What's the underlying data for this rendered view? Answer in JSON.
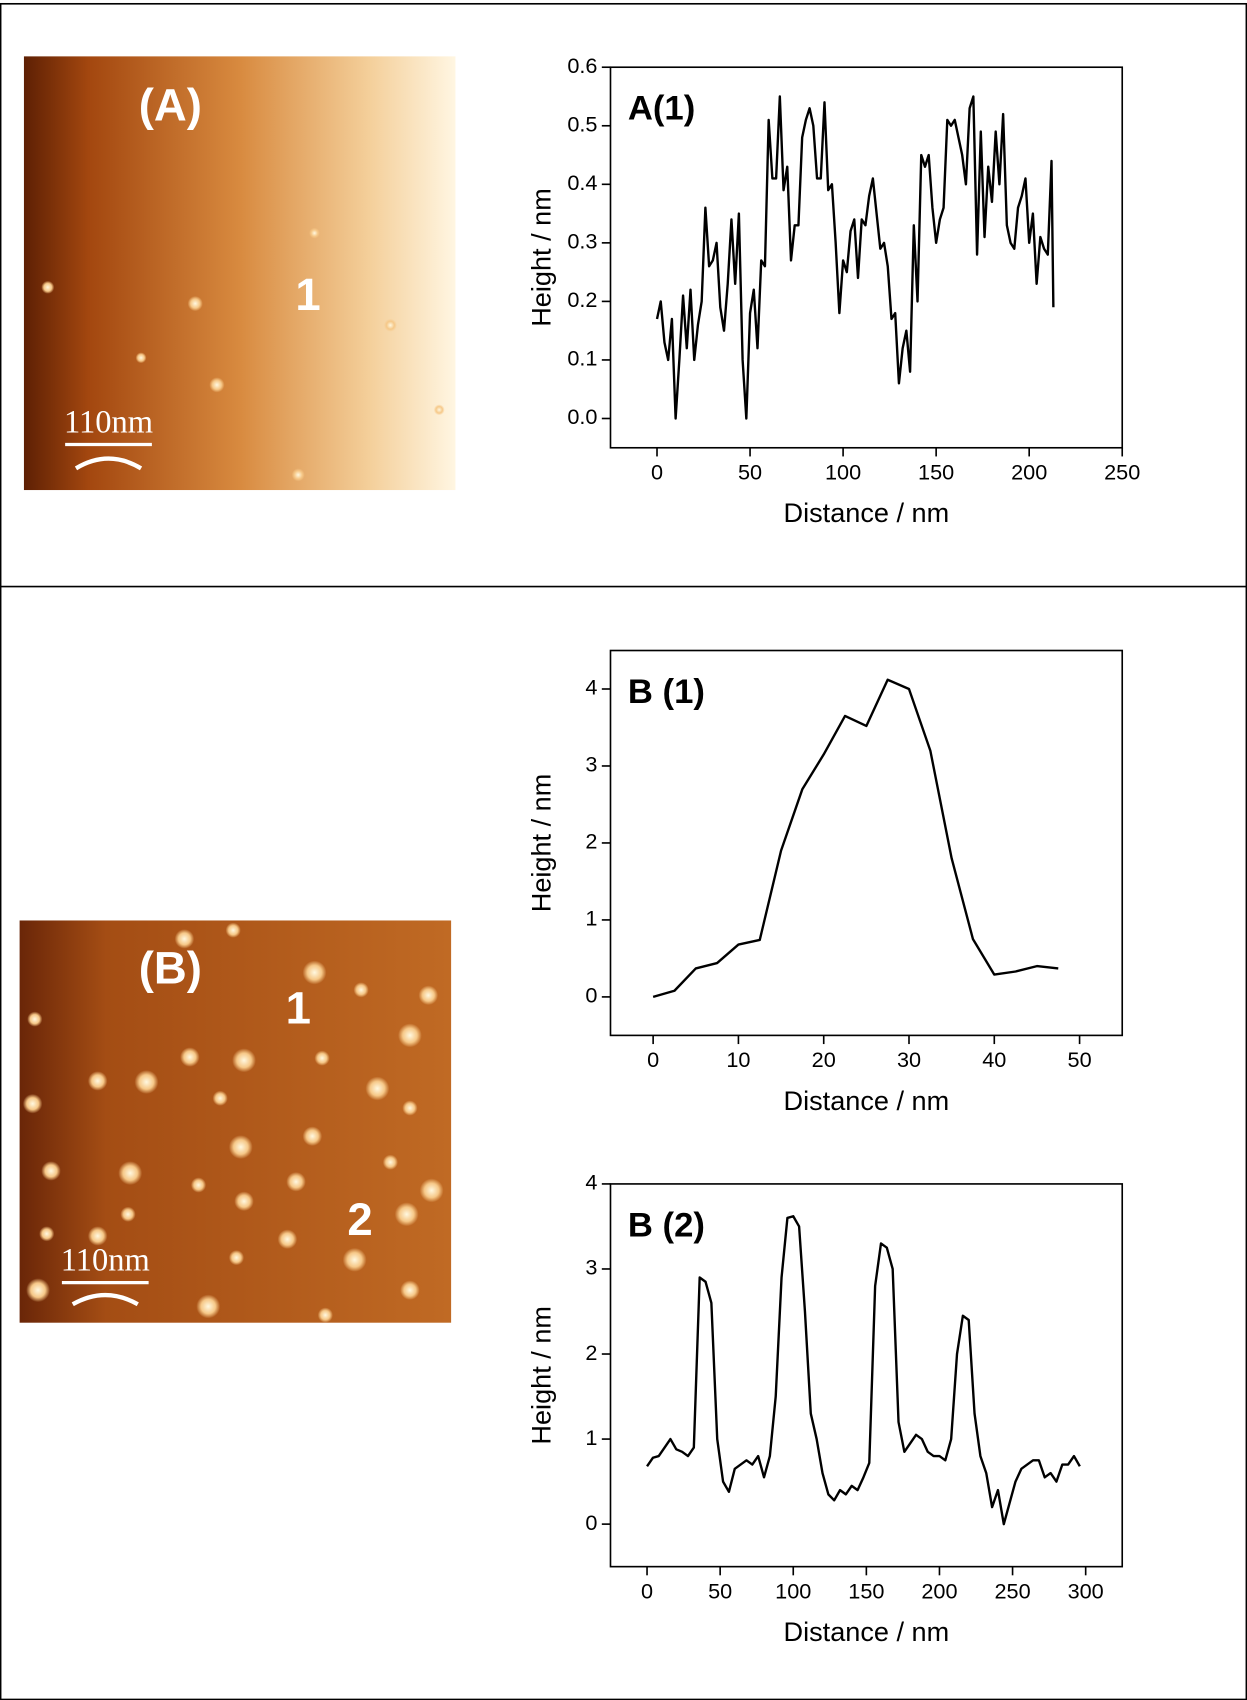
{
  "images": [
    {
      "label": "(A)",
      "markers": [
        "1"
      ],
      "scale_bar": "110nm"
    },
    {
      "label": "(B)",
      "markers": [
        "1",
        "2"
      ],
      "scale_bar": "110nm"
    }
  ],
  "chart_data": [
    {
      "type": "line",
      "title": "A(1)",
      "xlabel": "Distance / nm",
      "ylabel": "Height / nm",
      "color": "#000000",
      "xlim": [
        -25,
        250
      ],
      "xticks": [
        0,
        50,
        100,
        150,
        200,
        250
      ],
      "ylim": [
        -0.05,
        0.6
      ],
      "yticks": [
        {
          "value": 0,
          "label": "0.0"
        },
        0.1,
        0.2,
        0.3,
        0.4,
        0.5,
        0.6
      ],
      "x": [
        0,
        2,
        4,
        6,
        8,
        10,
        12,
        14,
        16,
        18,
        20,
        22,
        24,
        26,
        28,
        30,
        32,
        34,
        36,
        38,
        40,
        42,
        44,
        46,
        48,
        50,
        52,
        54,
        56,
        58,
        60,
        62,
        64,
        66,
        68,
        70,
        72,
        74,
        76,
        78,
        80,
        82,
        84,
        86,
        88,
        90,
        92,
        94,
        96,
        98,
        100,
        102,
        104,
        106,
        108,
        110,
        112,
        114,
        116,
        118,
        120,
        122,
        124,
        126,
        128,
        130,
        132,
        134,
        136,
        138,
        140,
        142,
        144,
        146,
        148,
        150,
        152,
        154,
        156,
        158,
        160,
        162,
        164,
        166,
        168,
        170,
        172,
        174,
        176,
        178,
        180,
        182,
        184,
        186,
        188,
        190,
        192,
        194,
        196,
        198,
        200,
        202,
        204,
        206,
        208,
        210,
        212,
        213
      ],
      "values": [
        0.17,
        0.2,
        0.13,
        0.1,
        0.17,
        0.0,
        0.1,
        0.21,
        0.12,
        0.22,
        0.1,
        0.16,
        0.2,
        0.36,
        0.26,
        0.27,
        0.3,
        0.19,
        0.15,
        0.23,
        0.34,
        0.23,
        0.35,
        0.1,
        0.0,
        0.18,
        0.22,
        0.12,
        0.27,
        0.26,
        0.51,
        0.41,
        0.41,
        0.55,
        0.39,
        0.43,
        0.27,
        0.33,
        0.33,
        0.48,
        0.51,
        0.53,
        0.5,
        0.41,
        0.41,
        0.54,
        0.39,
        0.4,
        0.3,
        0.18,
        0.27,
        0.25,
        0.32,
        0.34,
        0.24,
        0.34,
        0.33,
        0.38,
        0.41,
        0.35,
        0.29,
        0.3,
        0.26,
        0.17,
        0.18,
        0.06,
        0.12,
        0.15,
        0.08,
        0.33,
        0.2,
        0.45,
        0.43,
        0.45,
        0.36,
        0.3,
        0.34,
        0.36,
        0.51,
        0.5,
        0.51,
        0.48,
        0.45,
        0.4,
        0.53,
        0.55,
        0.28,
        0.49,
        0.31,
        0.43,
        0.37,
        0.49,
        0.4,
        0.52,
        0.33,
        0.3,
        0.29,
        0.36,
        0.38,
        0.41,
        0.3,
        0.35,
        0.23,
        0.31,
        0.29,
        0.28,
        0.44,
        0.19
      ]
    },
    {
      "type": "line",
      "title": "B (1)",
      "xlabel": "Distance / nm",
      "ylabel": "Height / nm",
      "color": "#000000",
      "xlim": [
        -5,
        55
      ],
      "xticks": [
        0,
        10,
        20,
        30,
        40,
        50
      ],
      "ylim": [
        -0.5,
        4.5
      ],
      "yticks": [
        0,
        1,
        2,
        3,
        4
      ],
      "x": [
        0,
        2.5,
        5,
        7.5,
        10,
        12.5,
        15,
        17.5,
        20,
        22.5,
        25,
        27.5,
        30,
        32.5,
        35,
        37.5,
        40,
        42.5,
        45,
        47.5
      ],
      "values": [
        0,
        0.08,
        0.37,
        0.44,
        0.68,
        0.74,
        1.9,
        2.7,
        3.15,
        3.65,
        3.52,
        4.12,
        4.0,
        3.2,
        1.8,
        0.75,
        0.29,
        0.33,
        0.4,
        0.37
      ]
    },
    {
      "type": "line",
      "title": "B (2)",
      "xlabel": "Distance / nm",
      "ylabel": "Height / nm",
      "color": "#000000",
      "xlim": [
        -25,
        325
      ],
      "xticks": [
        0,
        50,
        100,
        150,
        200,
        250,
        300
      ],
      "ylim": [
        -0.5,
        4
      ],
      "yticks": [
        0,
        1,
        2,
        3,
        4
      ],
      "x": [
        0,
        4,
        8,
        12,
        16,
        20,
        24,
        28,
        32,
        36,
        40,
        44,
        48,
        52,
        56,
        60,
        64,
        68,
        72,
        76,
        80,
        84,
        88,
        92,
        96,
        100,
        104,
        108,
        112,
        116,
        120,
        124,
        128,
        132,
        136,
        140,
        144,
        148,
        152,
        156,
        160,
        164,
        168,
        172,
        176,
        180,
        184,
        188,
        192,
        196,
        200,
        204,
        208,
        212,
        216,
        220,
        224,
        228,
        232,
        236,
        240,
        244,
        248,
        252,
        256,
        260,
        264,
        268,
        272,
        276,
        280,
        284,
        288,
        292,
        296
      ],
      "values": [
        0.68,
        0.78,
        0.8,
        0.9,
        1.0,
        0.88,
        0.85,
        0.8,
        0.9,
        2.9,
        2.85,
        2.6,
        1.0,
        0.5,
        0.38,
        0.65,
        0.7,
        0.75,
        0.7,
        0.8,
        0.55,
        0.8,
        1.5,
        2.9,
        3.6,
        3.62,
        3.5,
        2.5,
        1.3,
        1.0,
        0.6,
        0.35,
        0.28,
        0.4,
        0.35,
        0.45,
        0.4,
        0.55,
        0.72,
        2.8,
        3.3,
        3.25,
        3.0,
        1.2,
        0.85,
        0.95,
        1.05,
        1.0,
        0.85,
        0.8,
        0.8,
        0.75,
        1.0,
        2.0,
        2.45,
        2.4,
        1.3,
        0.8,
        0.6,
        0.2,
        0.4,
        0.0,
        0.25,
        0.5,
        0.65,
        0.7,
        0.75,
        0.75,
        0.55,
        0.6,
        0.5,
        0.7,
        0.7,
        0.8,
        0.68
      ]
    }
  ]
}
